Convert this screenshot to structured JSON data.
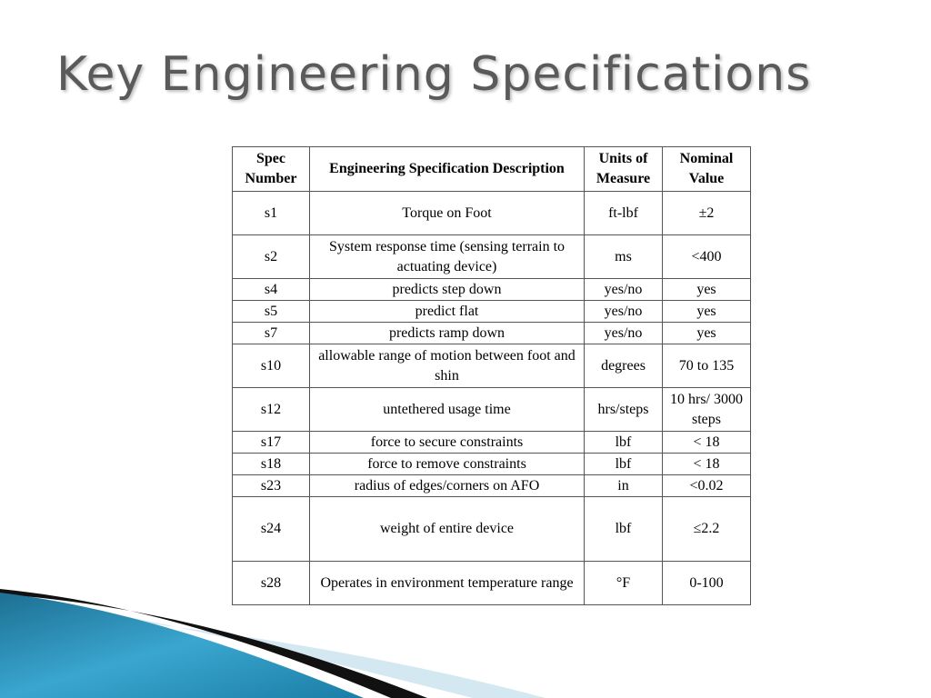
{
  "slide": {
    "title": "Key Engineering Specifications"
  },
  "table": {
    "headers": [
      "Spec Number",
      "Engineering Specification Description",
      "Units of Measure",
      "Nominal Value"
    ],
    "rows": [
      {
        "spec": "s1",
        "desc": "Torque on Foot",
        "units": "ft-lbf",
        "value": "±2"
      },
      {
        "spec": "s2",
        "desc": "System response time (sensing terrain to actuating device)",
        "units": "ms",
        "value": "<400"
      },
      {
        "spec": "s4",
        "desc": "predicts step down",
        "units": "yes/no",
        "value": "yes"
      },
      {
        "spec": "s5",
        "desc": "predict flat",
        "units": "yes/no",
        "value": "yes"
      },
      {
        "spec": "s7",
        "desc": "predicts ramp down",
        "units": "yes/no",
        "value": "yes"
      },
      {
        "spec": "s10",
        "desc": "allowable range of motion between foot and shin",
        "units": "degrees",
        "value": "70 to 135"
      },
      {
        "spec": "s12",
        "desc": "untethered usage time",
        "units": "hrs/steps",
        "value": "10 hrs/ 3000 steps"
      },
      {
        "spec": "s17",
        "desc": "force to secure constraints",
        "units": "lbf",
        "value": "< 18"
      },
      {
        "spec": "s18",
        "desc": "force to remove constraints",
        "units": "lbf",
        "value": "< 18"
      },
      {
        "spec": "s23",
        "desc": "radius of edges/corners on AFO",
        "units": "in",
        "value": "<0.02"
      },
      {
        "spec": "s24",
        "desc": "weight of entire device",
        "units": "lbf",
        "value": "≤2.2"
      },
      {
        "spec": "s28",
        "desc": "Operates in environment temperature range",
        "units": "°F",
        "value": "0-100"
      }
    ]
  },
  "colors": {
    "title": "#5a5a5a",
    "accent_blue": "#2a8db5",
    "accent_dark": "#111111",
    "accent_light": "#d4e8f2"
  }
}
